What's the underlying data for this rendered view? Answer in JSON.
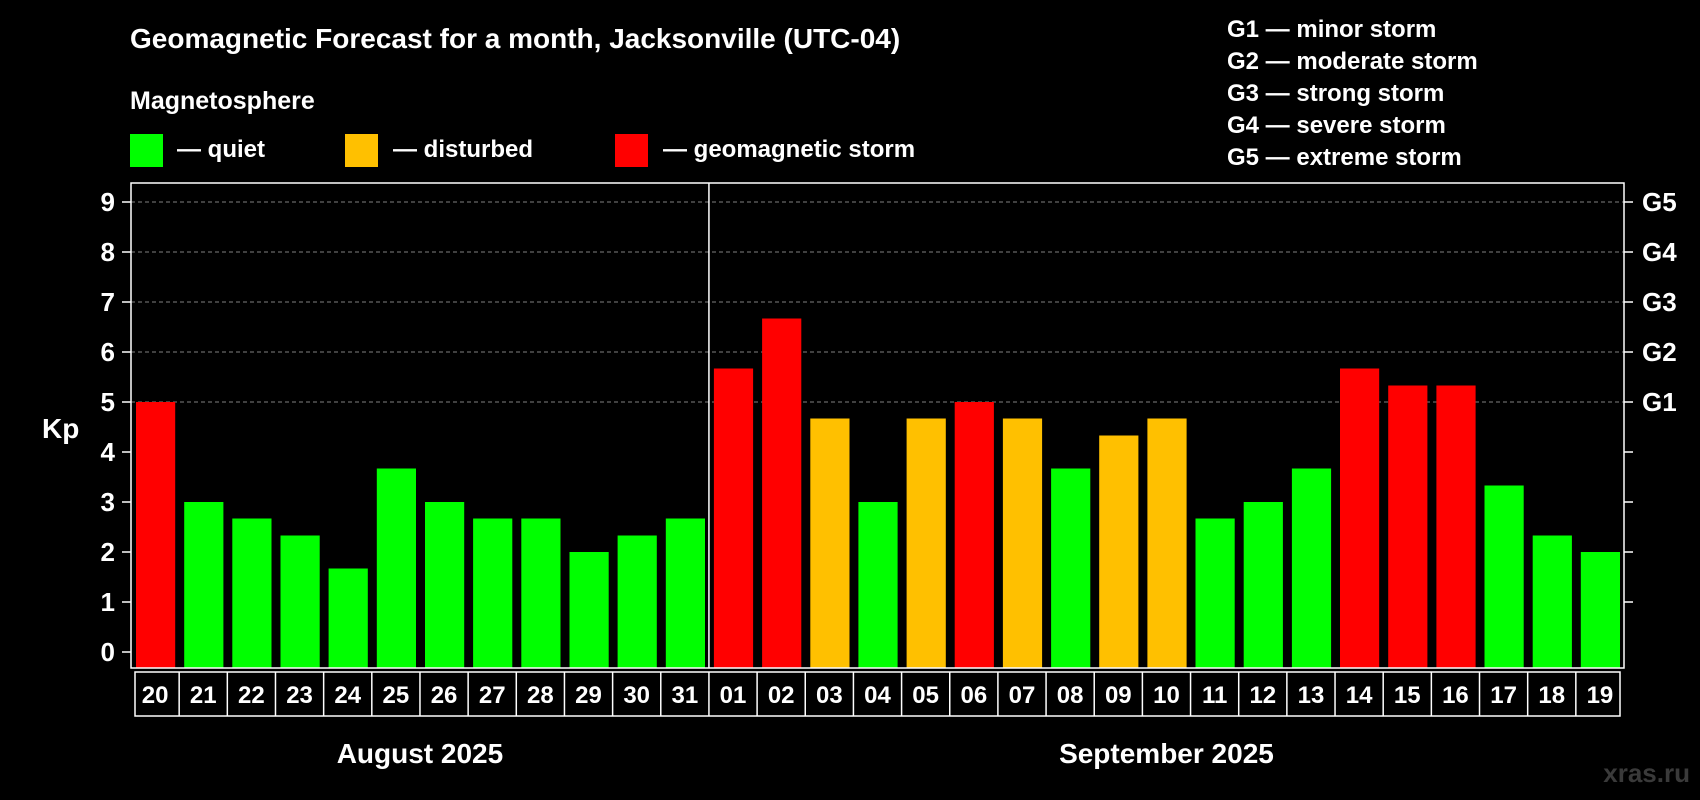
{
  "title": "Geomagnetic Forecast for a month, Jacksonville (UTC-04)",
  "subtitle": "Magnetosphere",
  "legend": [
    {
      "label": "— quiet",
      "color": "#00ff00"
    },
    {
      "label": "— disturbed",
      "color": "#ffc000"
    },
    {
      "label": "— geomagnetic storm",
      "color": "#ff0000"
    }
  ],
  "storm_scale": [
    "G1 — minor storm",
    "G2 — moderate storm",
    "G3 — strong storm",
    "G4 — severe storm",
    "G5 — extreme storm"
  ],
  "watermark": "xras.ru",
  "colors": {
    "quiet": "#00ff00",
    "disturbed": "#ffc000",
    "storm": "#ff0000",
    "grid": "#808080",
    "frame": "#ffffff"
  },
  "chart_data": {
    "type": "bar",
    "title": "Geomagnetic Forecast for a month, Jacksonville (UTC-04)",
    "ylabel": "Kp",
    "ylim": [
      0,
      9
    ],
    "yticks": [
      0,
      1,
      2,
      3,
      4,
      5,
      6,
      7,
      8,
      9
    ],
    "right_axis": [
      {
        "value": 5,
        "label": "G1"
      },
      {
        "value": 6,
        "label": "G2"
      },
      {
        "value": 7,
        "label": "G3"
      },
      {
        "value": 8,
        "label": "G4"
      },
      {
        "value": 9,
        "label": "G5"
      }
    ],
    "categories": [
      "20",
      "21",
      "22",
      "23",
      "24",
      "25",
      "26",
      "27",
      "28",
      "29",
      "30",
      "31",
      "01",
      "02",
      "03",
      "04",
      "05",
      "06",
      "07",
      "08",
      "09",
      "10",
      "11",
      "12",
      "13",
      "14",
      "15",
      "16",
      "17",
      "18",
      "19"
    ],
    "values": [
      5.0,
      3.0,
      2.67,
      2.33,
      1.67,
      3.67,
      3.0,
      2.67,
      2.67,
      2.0,
      2.33,
      2.67,
      5.67,
      6.67,
      4.67,
      3.0,
      4.67,
      5.0,
      4.67,
      3.67,
      4.33,
      4.67,
      2.67,
      3.0,
      3.67,
      5.67,
      5.33,
      5.33,
      3.33,
      2.33,
      2.0
    ],
    "levels": [
      "storm",
      "quiet",
      "quiet",
      "quiet",
      "quiet",
      "quiet",
      "quiet",
      "quiet",
      "quiet",
      "quiet",
      "quiet",
      "quiet",
      "storm",
      "storm",
      "disturbed",
      "quiet",
      "disturbed",
      "storm",
      "disturbed",
      "quiet",
      "disturbed",
      "disturbed",
      "quiet",
      "quiet",
      "quiet",
      "storm",
      "storm",
      "storm",
      "quiet",
      "quiet",
      "quiet"
    ],
    "months": [
      {
        "label": "August 2025",
        "start": 0,
        "count": 12
      },
      {
        "label": "September 2025",
        "start": 12,
        "count": 19
      }
    ],
    "grid": true
  }
}
